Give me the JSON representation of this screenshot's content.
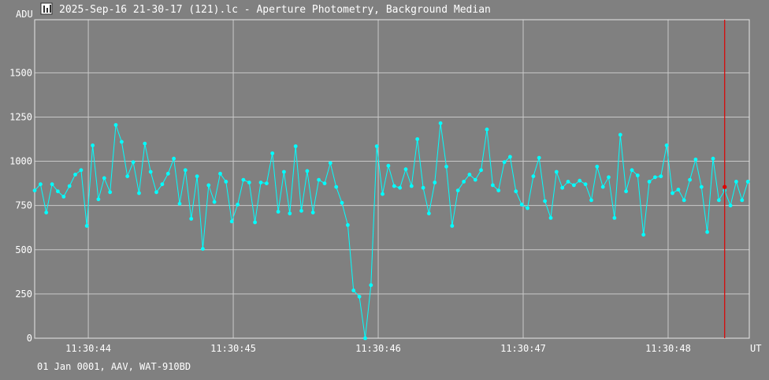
{
  "window": {
    "title": "2025-Sep-16 21-30-17 (121).lc - Aperture Photometry, Background Median",
    "icon": "chart-app-icon"
  },
  "footer": {
    "info": "01 Jan 0001, AAV, WAT-910BD"
  },
  "colors": {
    "background": "#808080",
    "series": "#00ffff",
    "cursor": "#dd0000",
    "grid": "#c8c8c8",
    "text": "#ffffff"
  },
  "chart_data": {
    "type": "line",
    "ylabel": "ADU",
    "xlabel": "UT",
    "ylim": [
      0,
      1800
    ],
    "yticks": [
      0,
      250,
      500,
      750,
      1000,
      1250,
      1500
    ],
    "xlim": [
      43.63,
      48.56
    ],
    "xticks": [
      {
        "value": 44,
        "label": "11:30:44"
      },
      {
        "value": 45,
        "label": "11:30:45"
      },
      {
        "value": 46,
        "label": "11:30:46"
      },
      {
        "value": 47,
        "label": "11:30:47"
      },
      {
        "value": 48,
        "label": "11:30:48"
      }
    ],
    "grid": true,
    "x_start": 43.63,
    "x_step": 0.04,
    "cursor_x": 48.39,
    "cursor_y": 855,
    "series": [
      {
        "values": [
          835,
          870,
          710,
          870,
          830,
          800,
          860,
          925,
          950,
          635,
          1090,
          785,
          905,
          825,
          1205,
          1110,
          915,
          995,
          820,
          1100,
          940,
          825,
          870,
          930,
          1015,
          760,
          950,
          675,
          915,
          505,
          865,
          770,
          930,
          885,
          660,
          755,
          895,
          880,
          655,
          880,
          875,
          1045,
          715,
          940,
          705,
          1085,
          720,
          945,
          710,
          895,
          875,
          990,
          855,
          765,
          640,
          270,
          235,
          0,
          300,
          1085,
          815,
          975,
          860,
          850,
          955,
          860,
          1125,
          850,
          705,
          880,
          1215,
          970,
          635,
          835,
          885,
          925,
          895,
          950,
          1180,
          865,
          835,
          995,
          1025,
          830,
          755,
          735,
          915,
          1020,
          775,
          680,
          940,
          850,
          885,
          865,
          890,
          870,
          780,
          970,
          855,
          910,
          680,
          1150,
          830,
          950,
          920,
          585,
          885,
          910,
          915,
          1090,
          820,
          840,
          780,
          895,
          1010,
          855,
          600,
          1015,
          780,
          835,
          750,
          885,
          780,
          885
        ]
      }
    ]
  }
}
